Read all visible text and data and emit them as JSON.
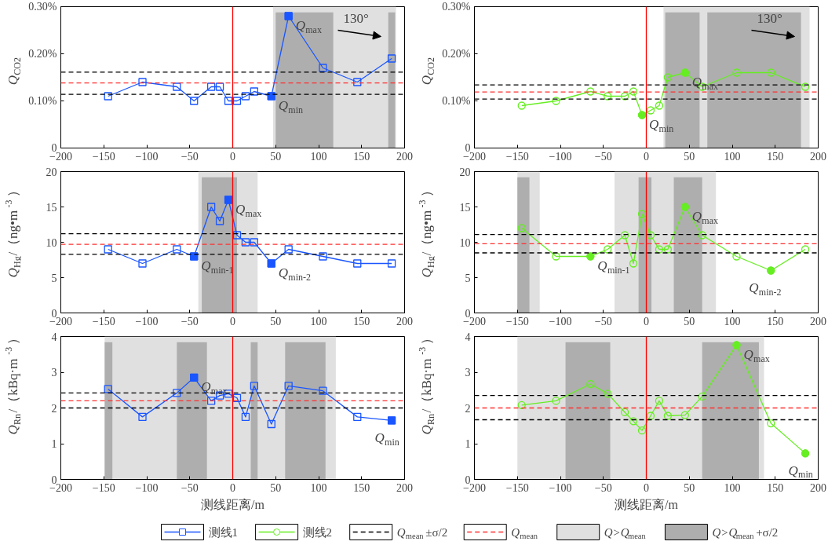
{
  "chart_data": [
    {
      "type": "line",
      "ylabel": "Q$_{CO2}$",
      "marker": "square",
      "x": [
        -145,
        -105,
        -65,
        -45,
        -25,
        -15,
        -5,
        5,
        15,
        25,
        45,
        65,
        105,
        145,
        185
      ],
      "series": [
        {
          "color": "#1a56ff",
          "values": [
            0.11,
            0.14,
            0.13,
            0.1,
            0.13,
            0.13,
            0.1,
            0.1,
            0.11,
            0.12,
            0.11,
            0.28,
            0.17,
            0.14,
            0.19
          ]
        }
      ],
      "xlim": [
        -200,
        200
      ],
      "xticks": [
        {
          "value": -200,
          "label": "−200"
        },
        {
          "value": -150,
          "label": "−150"
        },
        {
          "value": -100,
          "label": "−100"
        },
        {
          "value": -50,
          "label": "−50"
        },
        0,
        50,
        100,
        150,
        200
      ],
      "ylim": [
        0,
        0.3
      ],
      "yticks": [
        0,
        {
          "value": 0.1,
          "label": "0.10%"
        },
        {
          "value": 0.2,
          "label": "0.20%"
        },
        {
          "value": 0.3,
          "label": "0.30%"
        }
      ],
      "ref_lines": [
        {
          "axis": "x",
          "value": 0,
          "color": "#ff0000",
          "line_style": "solid"
        },
        {
          "axis": "y",
          "value": 0.161,
          "color": "#000000",
          "line_style": "dashed"
        },
        {
          "axis": "y",
          "value": 0.138,
          "color": "#ff3030",
          "line_style": "dashed"
        },
        {
          "axis": "y",
          "value": 0.114,
          "color": "#000000",
          "line_style": "dashed"
        }
      ],
      "bands": [
        {
          "axis": "x",
          "from": 47,
          "to": 190,
          "color": "#e0e0e0"
        },
        {
          "axis": "x",
          "from": 50,
          "to": 117,
          "color": "#aeaeae"
        },
        {
          "axis": "x",
          "from": 181,
          "to": 189,
          "color": "#aeaeae"
        }
      ],
      "annotations": [
        {
          "text": "Q$_{max}$",
          "x": 65,
          "y": 0.28
        },
        {
          "text": "Q$_{min}$",
          "x": 45,
          "y": 0.11
        },
        "130°"
      ]
    },
    {
      "type": "line",
      "ylabel": "Q$_{CO2}$",
      "marker": "circle",
      "x": [
        -145,
        -105,
        -65,
        -45,
        -25,
        -15,
        -5,
        5,
        15,
        25,
        45,
        65,
        105,
        145,
        185
      ],
      "series": [
        {
          "color": "#66ee22",
          "values": [
            0.09,
            0.1,
            0.12,
            0.11,
            0.11,
            0.12,
            0.07,
            0.08,
            0.09,
            0.15,
            0.16,
            0.13,
            0.16,
            0.16,
            0.13
          ]
        }
      ],
      "xlim": [
        -200,
        200
      ],
      "xticks": [
        {
          "value": -200,
          "label": "−200"
        },
        {
          "value": -150,
          "label": "−150"
        },
        {
          "value": -100,
          "label": "−100"
        },
        {
          "value": -50,
          "label": "−50"
        },
        0,
        50,
        100,
        150,
        200
      ],
      "ylim": [
        0,
        0.3
      ],
      "yticks": [
        0,
        {
          "value": 0.1,
          "label": "0.10%"
        },
        {
          "value": 0.2,
          "label": "0.20%"
        },
        {
          "value": 0.3,
          "label": "0.30%"
        }
      ],
      "ref_lines": [
        {
          "axis": "x",
          "value": 0,
          "color": "#ff0000",
          "line_style": "solid"
        },
        {
          "axis": "y",
          "value": 0.134,
          "color": "#000000",
          "line_style": "dashed"
        },
        {
          "axis": "y",
          "value": 0.119,
          "color": "#ff3030",
          "line_style": "dashed"
        },
        {
          "axis": "y",
          "value": 0.104,
          "color": "#000000",
          "line_style": "dashed"
        }
      ],
      "bands": [
        {
          "axis": "x",
          "from": 20,
          "to": 190,
          "color": "#e0e0e0"
        },
        {
          "axis": "x",
          "from": 22,
          "to": 62,
          "color": "#aeaeae"
        },
        {
          "axis": "x",
          "from": 71,
          "to": 180,
          "color": "#aeaeae"
        }
      ],
      "annotations": [
        {
          "text": "Q$_{max}$",
          "x": 45,
          "y": 0.16
        },
        {
          "text": "Q$_{min}$",
          "x": -5,
          "y": 0.07
        },
        "130°"
      ]
    },
    {
      "type": "line",
      "ylabel": "Q$_{Hg}$/（ng•m$^{-3}$）",
      "marker": "square",
      "x": [
        -145,
        -105,
        -65,
        -45,
        -25,
        -15,
        -5,
        5,
        15,
        25,
        45,
        65,
        105,
        145,
        185
      ],
      "series": [
        {
          "color": "#1a56ff",
          "values": [
            9,
            7,
            9,
            8,
            15,
            13,
            16,
            11,
            10,
            10,
            7,
            9,
            8,
            7,
            7
          ]
        }
      ],
      "xlim": [
        -200,
        200
      ],
      "xticks": [
        {
          "value": -200,
          "label": "−200"
        },
        {
          "value": -150,
          "label": "−150"
        },
        {
          "value": -100,
          "label": "−100"
        },
        {
          "value": -50,
          "label": "−50"
        },
        0,
        50,
        100,
        150,
        200
      ],
      "ylim": [
        0,
        20
      ],
      "yticks": [
        0,
        5,
        10,
        15,
        20
      ],
      "ref_lines": [
        {
          "axis": "x",
          "value": 0,
          "color": "#ff0000",
          "line_style": "solid"
        },
        {
          "axis": "y",
          "value": 11.2,
          "color": "#000000",
          "line_style": "dashed"
        },
        {
          "axis": "y",
          "value": 9.7,
          "color": "#ff3030",
          "line_style": "dashed"
        },
        {
          "axis": "y",
          "value": 8.3,
          "color": "#000000",
          "line_style": "dashed"
        }
      ],
      "bands": [
        {
          "axis": "x",
          "from": -40,
          "to": 29,
          "color": "#e0e0e0"
        },
        {
          "axis": "x",
          "from": -36,
          "to": 5,
          "color": "#aeaeae"
        }
      ],
      "annotations": [
        {
          "text": "Q$_{max}$",
          "x": -5,
          "y": 16
        },
        {
          "text": "Q$_{min-1}$",
          "x": -45,
          "y": 8
        },
        {
          "text": "Q$_{min-2}$",
          "x": 45,
          "y": 7
        }
      ]
    },
    {
      "type": "line",
      "ylabel": "Q$_{Hg}$/（ng•m$^{-3}$）",
      "marker": "circle",
      "x": [
        -145,
        -105,
        -65,
        -45,
        -25,
        -15,
        -5,
        5,
        15,
        25,
        45,
        65,
        105,
        145,
        185
      ],
      "series": [
        {
          "color": "#66ee22",
          "values": [
            12,
            8,
            8,
            9,
            11,
            7,
            14,
            11,
            9,
            9,
            15,
            11,
            8,
            6,
            9
          ]
        }
      ],
      "xlim": [
        -200,
        200
      ],
      "xticks": [
        {
          "value": -200,
          "label": "−200"
        },
        {
          "value": -150,
          "label": "−150"
        },
        {
          "value": -100,
          "label": "−100"
        },
        {
          "value": -50,
          "label": "−50"
        },
        0,
        50,
        100,
        150,
        200
      ],
      "ylim": [
        0,
        20
      ],
      "yticks": [
        0,
        5,
        10,
        15,
        20
      ],
      "ref_lines": [
        {
          "axis": "x",
          "value": 0,
          "color": "#ff0000",
          "line_style": "solid"
        },
        {
          "axis": "y",
          "value": 11.1,
          "color": "#000000",
          "line_style": "dashed"
        },
        {
          "axis": "y",
          "value": 9.8,
          "color": "#ff3030",
          "line_style": "dashed"
        },
        {
          "axis": "y",
          "value": 8.5,
          "color": "#000000",
          "line_style": "dashed"
        }
      ],
      "bands": [
        {
          "axis": "x",
          "from": -150,
          "to": -124,
          "color": "#e0e0e0"
        },
        {
          "axis": "x",
          "from": -37,
          "to": 81,
          "color": "#e0e0e0"
        },
        {
          "axis": "x",
          "from": -150,
          "to": -136,
          "color": "#aeaeae"
        },
        {
          "axis": "x",
          "from": -9,
          "to": 6,
          "color": "#aeaeae"
        },
        {
          "axis": "x",
          "from": 32,
          "to": 65,
          "color": "#aeaeae"
        }
      ],
      "annotations": [
        {
          "text": "Q$_{max}$",
          "x": 45,
          "y": 15
        },
        {
          "text": "Q$_{min-1}$",
          "x": -65,
          "y": 8
        },
        {
          "text": "Q$_{min-2}$",
          "x": 145,
          "y": 6
        }
      ]
    },
    {
      "type": "line",
      "ylabel": "Q$_{Rn}$/（kBq·m$^{-3}$）",
      "xlabel": "测线距离/m",
      "marker": "square",
      "legend": "bottom",
      "x": [
        -145,
        -105,
        -65,
        -45,
        -25,
        -15,
        -5,
        5,
        15,
        25,
        45,
        65,
        105,
        145,
        185
      ],
      "series": [
        {
          "name": "测线1",
          "color": "#1a56ff",
          "values": [
            2.53,
            1.75,
            2.42,
            2.85,
            2.2,
            2.35,
            2.4,
            2.28,
            1.75,
            2.62,
            1.55,
            2.62,
            2.48,
            1.75,
            1.65
          ]
        }
      ],
      "xlim": [
        -200,
        200
      ],
      "xticks": [
        {
          "value": -200,
          "label": "−200"
        },
        {
          "value": -150,
          "label": "−150"
        },
        {
          "value": -100,
          "label": "−100"
        },
        {
          "value": -50,
          "label": "−50"
        },
        0,
        50,
        100,
        150,
        200
      ],
      "ylim": [
        0,
        4
      ],
      "yticks": [
        0,
        1,
        2,
        3,
        4
      ],
      "ref_lines": [
        {
          "axis": "x",
          "value": 0,
          "color": "#ff0000",
          "line_style": "solid"
        },
        {
          "axis": "y",
          "value": 2.42,
          "color": "#000000",
          "line_style": "dashed"
        },
        {
          "axis": "y",
          "value": 2.2,
          "color": "#ff3030",
          "line_style": "dashed"
        },
        {
          "axis": "y",
          "value": 2.0,
          "color": "#000000",
          "line_style": "dashed"
        }
      ],
      "bands": [
        {
          "axis": "x",
          "from": -149,
          "to": 120,
          "color": "#e0e0e0"
        },
        {
          "axis": "x",
          "from": -149,
          "to": -140,
          "color": "#aeaeae"
        },
        {
          "axis": "x",
          "from": -65,
          "to": -30,
          "color": "#aeaeae"
        },
        {
          "axis": "x",
          "from": 21,
          "to": 29,
          "color": "#aeaeae"
        },
        {
          "axis": "x",
          "from": 61,
          "to": 108,
          "color": "#aeaeae"
        }
      ],
      "annotations": [
        {
          "text": "Q$_{max}$",
          "x": -45,
          "y": 2.85
        },
        {
          "text": "Q$_{min}$",
          "x": 185,
          "y": 1.65
        }
      ]
    },
    {
      "type": "line",
      "ylabel": "Q$_{Rn}$/（kBq·m$^{-3}$）",
      "xlabel": "测线距离/m",
      "marker": "circle",
      "legend": "bottom",
      "x": [
        -145,
        -105,
        -65,
        -45,
        -25,
        -15,
        -5,
        5,
        15,
        25,
        45,
        65,
        105,
        145,
        185
      ],
      "series": [
        {
          "name": "测线2",
          "color": "#66ee22",
          "values": [
            2.08,
            2.2,
            2.67,
            2.4,
            1.88,
            1.63,
            1.37,
            1.78,
            2.2,
            1.78,
            1.8,
            2.32,
            3.76,
            1.57,
            0.73
          ]
        }
      ],
      "xlim": [
        -200,
        200
      ],
      "xticks": [
        {
          "value": -200,
          "label": "−200"
        },
        {
          "value": -150,
          "label": "−150"
        },
        {
          "value": -100,
          "label": "−100"
        },
        {
          "value": -50,
          "label": "−50"
        },
        0,
        50,
        100,
        150,
        200
      ],
      "ylim": [
        0,
        4
      ],
      "yticks": [
        0,
        1,
        2,
        3,
        4
      ],
      "ref_lines": [
        {
          "axis": "x",
          "value": 0,
          "color": "#ff0000",
          "line_style": "solid"
        },
        {
          "axis": "y",
          "value": 2.35,
          "color": "#000000",
          "line_style": "dashed",
          "label": "Q$_{mean}$±σ/2"
        },
        {
          "axis": "y",
          "value": 2.0,
          "color": "#ff3030",
          "line_style": "dashed",
          "label": "Q$_{mean}$"
        },
        {
          "axis": "y",
          "value": 1.67,
          "color": "#000000",
          "line_style": "dashed"
        }
      ],
      "bands": [
        {
          "axis": "x",
          "from": -150,
          "to": 137,
          "color": "#e0e0e0",
          "label": "Q>Q$_{mean}$"
        },
        {
          "axis": "x",
          "from": -94,
          "to": -42,
          "color": "#aeaeae",
          "label": "Q>Q$_{mean}$+σ/2"
        },
        {
          "axis": "x",
          "from": 65,
          "to": 131,
          "color": "#aeaeae"
        }
      ],
      "annotations": [
        {
          "text": "Q$_{max}$",
          "x": 105,
          "y": 3.76
        },
        {
          "text": "Q$_{min}$",
          "x": 185,
          "y": 0.73
        }
      ]
    }
  ]
}
